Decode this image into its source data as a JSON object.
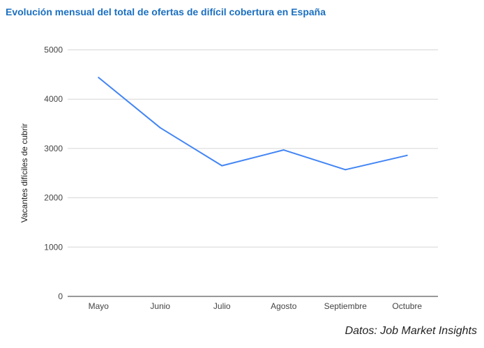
{
  "chart_data": {
    "type": "line",
    "title": "Evolución mensual del total de ofertas de difícil cobertura en España",
    "xlabel": "",
    "ylabel": "Vacantes difíciles de cubrir",
    "categories": [
      "Mayo",
      "Junio",
      "Julio",
      "Agosto",
      "Septiembre",
      "Octubre"
    ],
    "values": [
      4440,
      3420,
      2650,
      2970,
      2570,
      2860
    ],
    "ylim": [
      0,
      5000
    ],
    "yticks": [
      "0",
      "1000",
      "2000",
      "3000",
      "4000",
      "5000"
    ],
    "grid": true,
    "legend": "none",
    "line_color": "#4285f4"
  },
  "source": "Datos: Job Market Insights"
}
